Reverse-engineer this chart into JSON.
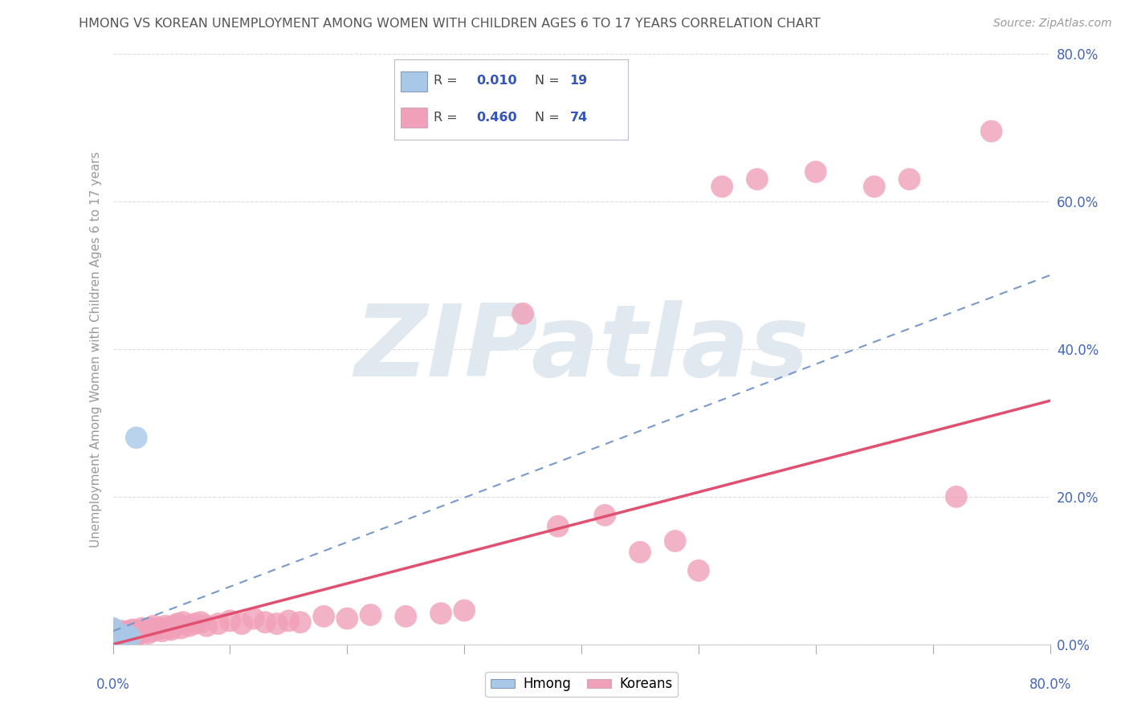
{
  "title": "HMONG VS KOREAN UNEMPLOYMENT AMONG WOMEN WITH CHILDREN AGES 6 TO 17 YEARS CORRELATION CHART",
  "source": "Source: ZipAtlas.com",
  "ylabel": "Unemployment Among Women with Children Ages 6 to 17 years",
  "xtick_left": "0.0%",
  "xtick_right": "80.0%",
  "xlim": [
    0.0,
    0.8
  ],
  "ylim": [
    0.0,
    0.8
  ],
  "ytick_values": [
    0.0,
    0.2,
    0.4,
    0.6,
    0.8
  ],
  "ytick_labels": [
    "0.0%",
    "20.0%",
    "40.0%",
    "60.0%",
    "80.0%"
  ],
  "legend_hmong_r": "0.010",
  "legend_hmong_n": "19",
  "legend_korean_r": "0.460",
  "legend_korean_n": "74",
  "hmong_color": "#A8C8E8",
  "korean_color": "#F0A0B8",
  "hmong_line_color": "#7799CC",
  "korean_line_color": "#E05070",
  "title_color": "#555555",
  "axis_label_color": "#999999",
  "tick_color": "#4466BB",
  "r_color": "#3355BB",
  "grid_color": "#DDDDDD",
  "bg_color": "#FFFFFF",
  "watermark": "ZIPatlas",
  "watermark_color": "#E0E8F0",
  "hmong_scatter_x": [
    0.0,
    0.0,
    0.0,
    0.0,
    0.0,
    0.0,
    0.0,
    0.0,
    0.002,
    0.003,
    0.004,
    0.005,
    0.006,
    0.007,
    0.008,
    0.01,
    0.012,
    0.015,
    0.02
  ],
  "hmong_scatter_y": [
    0.0,
    0.002,
    0.005,
    0.008,
    0.01,
    0.015,
    0.018,
    0.022,
    0.005,
    0.008,
    0.01,
    0.012,
    0.008,
    0.01,
    0.012,
    0.01,
    0.012,
    0.01,
    0.28
  ],
  "korean_scatter_x": [
    0.0,
    0.0,
    0.0,
    0.0,
    0.002,
    0.003,
    0.004,
    0.005,
    0.005,
    0.006,
    0.007,
    0.008,
    0.009,
    0.01,
    0.01,
    0.011,
    0.012,
    0.013,
    0.014,
    0.015,
    0.016,
    0.017,
    0.018,
    0.019,
    0.02,
    0.022,
    0.024,
    0.025,
    0.027,
    0.03,
    0.032,
    0.034,
    0.035,
    0.038,
    0.04,
    0.042,
    0.045,
    0.048,
    0.05,
    0.052,
    0.055,
    0.058,
    0.06,
    0.065,
    0.07,
    0.075,
    0.08,
    0.09,
    0.1,
    0.11,
    0.12,
    0.13,
    0.14,
    0.15,
    0.16,
    0.18,
    0.2,
    0.22,
    0.25,
    0.28,
    0.3,
    0.35,
    0.38,
    0.42,
    0.45,
    0.48,
    0.5,
    0.52,
    0.55,
    0.6,
    0.65,
    0.68,
    0.72,
    0.75
  ],
  "korean_scatter_y": [
    0.005,
    0.01,
    0.015,
    0.02,
    0.008,
    0.012,
    0.015,
    0.008,
    0.018,
    0.01,
    0.012,
    0.018,
    0.01,
    0.012,
    0.016,
    0.008,
    0.015,
    0.01,
    0.018,
    0.012,
    0.015,
    0.02,
    0.01,
    0.018,
    0.012,
    0.018,
    0.015,
    0.022,
    0.018,
    0.015,
    0.022,
    0.018,
    0.025,
    0.02,
    0.022,
    0.018,
    0.025,
    0.022,
    0.02,
    0.025,
    0.028,
    0.022,
    0.03,
    0.025,
    0.028,
    0.03,
    0.025,
    0.028,
    0.032,
    0.028,
    0.035,
    0.03,
    0.028,
    0.032,
    0.03,
    0.038,
    0.035,
    0.04,
    0.038,
    0.042,
    0.046,
    0.448,
    0.16,
    0.175,
    0.125,
    0.14,
    0.1,
    0.62,
    0.63,
    0.64,
    0.62,
    0.63,
    0.2,
    0.695
  ],
  "hmong_trend_x": [
    0.0,
    0.8
  ],
  "hmong_trend_y": [
    0.018,
    0.5
  ],
  "korean_trend_x": [
    0.0,
    0.8
  ],
  "korean_trend_y": [
    0.0,
    0.33
  ]
}
